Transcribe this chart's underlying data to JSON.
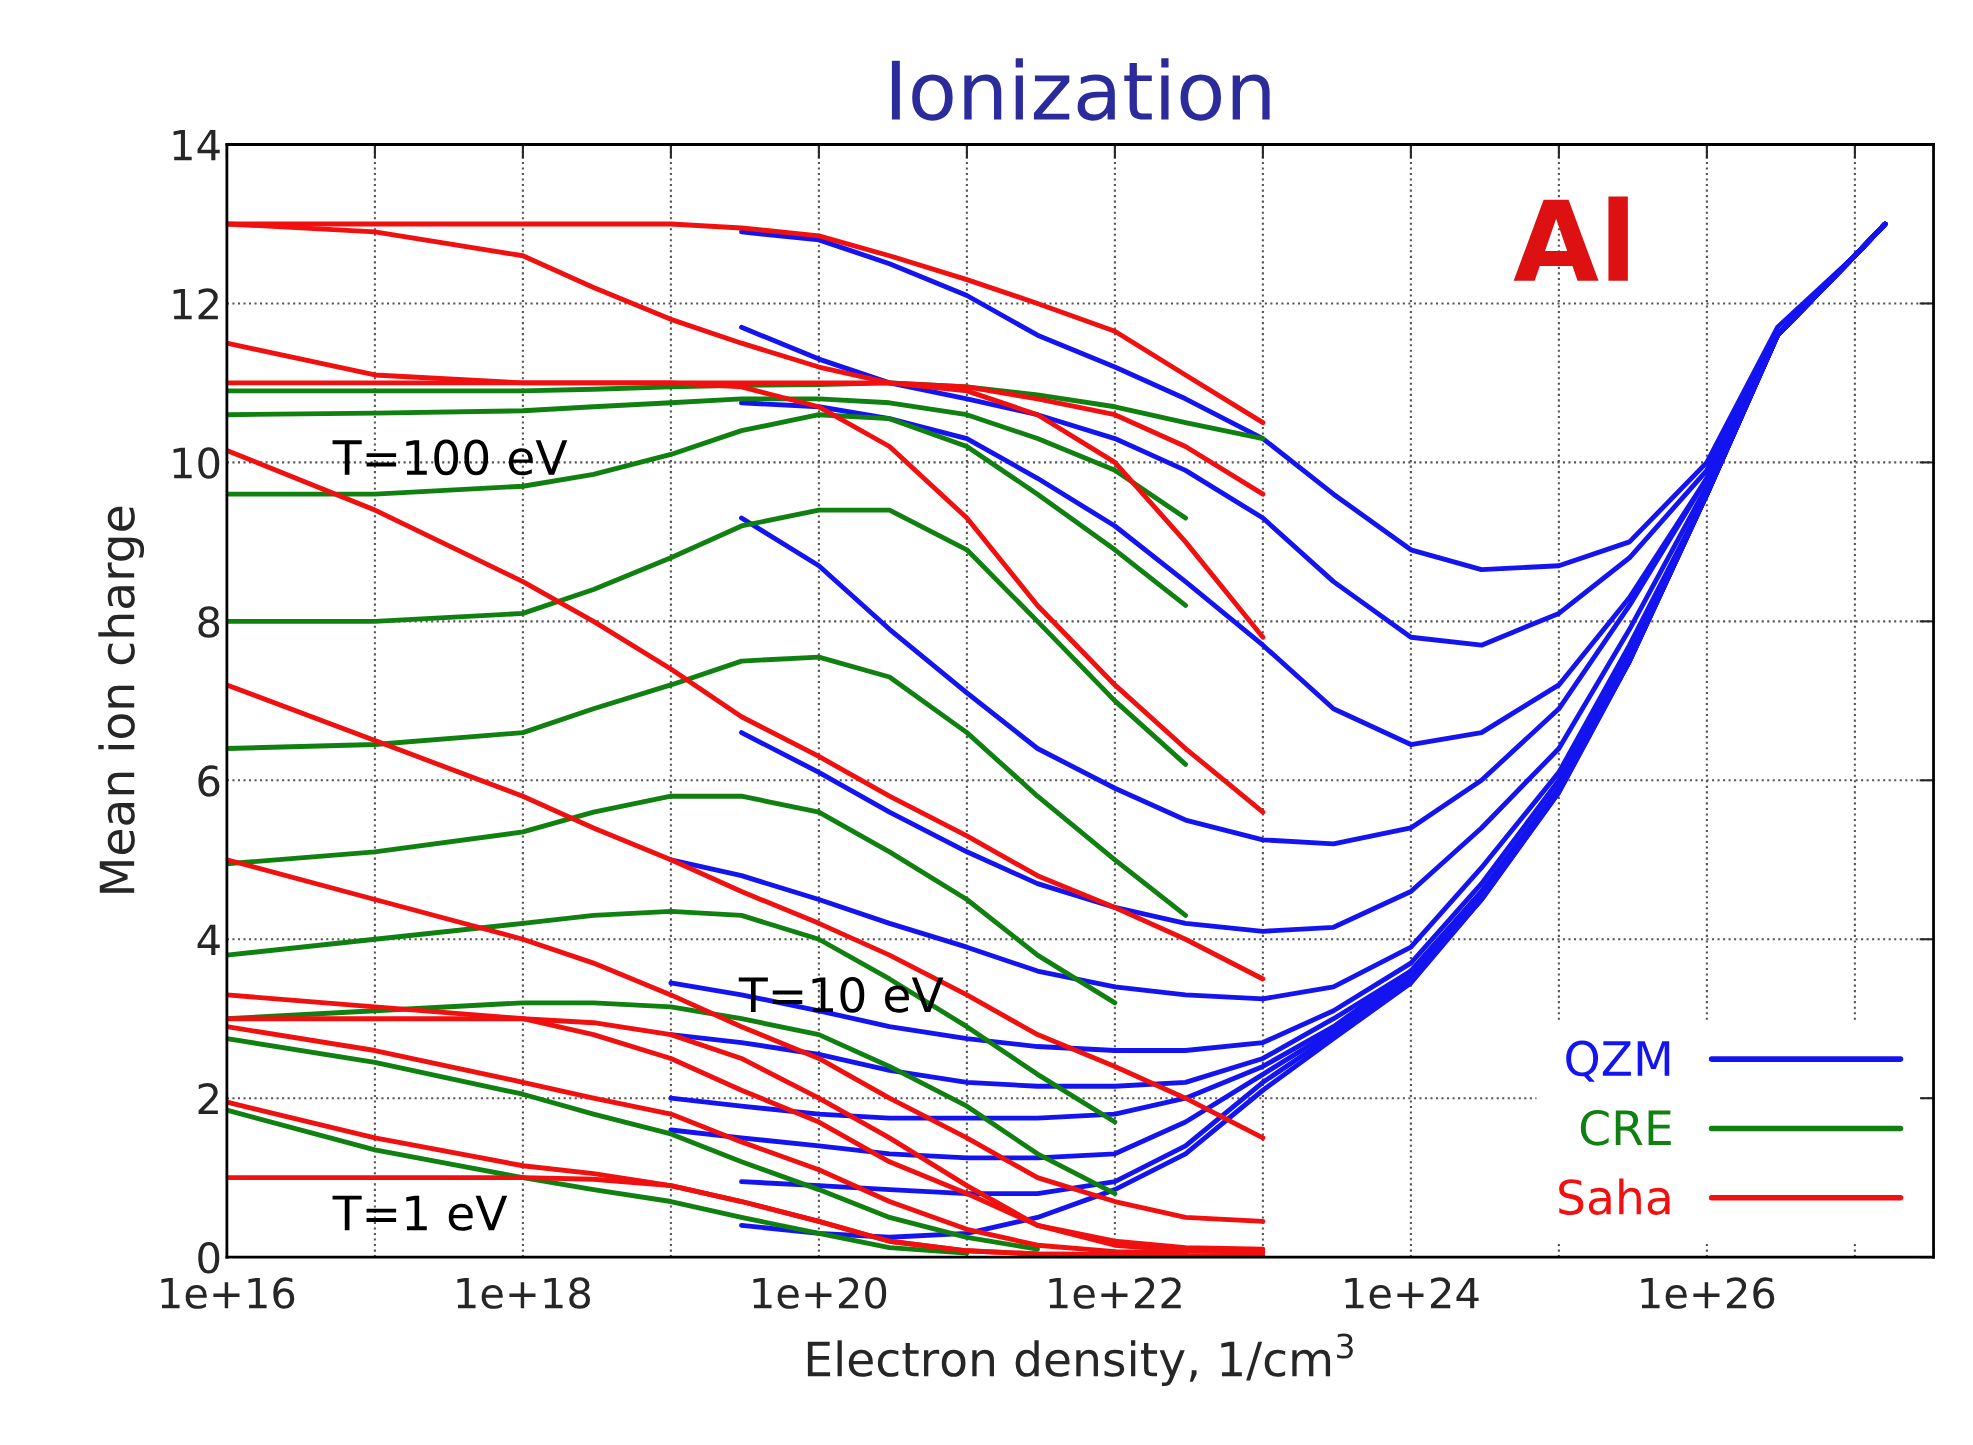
{
  "chart_data": {
    "type": "line",
    "title": "Ionization",
    "xlabel": "Electron density, 1/cm$^{3}$",
    "ylabel": "Mean ion charge",
    "log": "x",
    "grid": true,
    "legend": "bottom right",
    "line_style": "solid",
    "marker": "none",
    "xlim": [
      1e+16,
      3.4e+27
    ],
    "ylim": [
      0,
      14
    ],
    "xticks": [
      {
        "value": 1e+16,
        "label": "1e+16"
      },
      {
        "value": 1e+17,
        "label": null
      },
      {
        "value": 1e+18,
        "label": "1e+18"
      },
      {
        "value": 1e+19,
        "label": null
      },
      {
        "value": 1e+20,
        "label": "1e+20"
      },
      {
        "value": 1e+21,
        "label": null
      },
      {
        "value": 1e+22,
        "label": "1e+22"
      },
      {
        "value": 1e+23,
        "label": null
      },
      {
        "value": 1e+24,
        "label": "1e+24"
      },
      {
        "value": 1e+25,
        "label": null
      },
      {
        "value": 1e+26,
        "label": "1e+26"
      },
      {
        "value": 1e+27,
        "label": null
      }
    ],
    "yticks": [
      0,
      2,
      4,
      6,
      8,
      10,
      12,
      14
    ],
    "annotations": [
      "T=100 eV",
      "T=10 eV",
      "T=1 eV",
      "Al"
    ],
    "series": [
      {
        "name": "QZM",
        "color": "#1414f0",
        "x": [
          3e+19,
          1e+20,
          3e+20,
          1e+21,
          3e+21,
          1e+22,
          3e+22,
          1e+23,
          3e+23,
          1e+24,
          3e+24,
          1e+25,
          3e+25,
          1e+26,
          3e+26,
          1e+27,
          1.6e+27
        ],
        "values": [
          12.9,
          12.8,
          12.5,
          12.1,
          11.6,
          11.2,
          10.8,
          10.3,
          9.6,
          8.9,
          8.65,
          8.7,
          9.0,
          10.0,
          11.7,
          12.6,
          13.0
        ]
      },
      {
        "color": "#1414f0",
        "x": [
          3e+19,
          1e+20,
          3e+20,
          1e+21,
          3e+21,
          1e+22,
          3e+22,
          1e+23,
          3e+23,
          1e+24,
          3e+24,
          1e+25,
          3e+25,
          1e+26,
          3e+26,
          1e+27,
          1.6e+27
        ],
        "values": [
          11.7,
          11.3,
          11.0,
          10.8,
          10.6,
          10.3,
          9.9,
          9.3,
          8.5,
          7.8,
          7.7,
          8.1,
          8.8,
          9.9,
          11.6,
          12.6,
          13.0
        ]
      },
      {
        "color": "#1414f0",
        "x": [
          3e+19,
          1e+20,
          3e+20,
          1e+21,
          3e+21,
          1e+22,
          3e+22,
          1e+23,
          3e+23,
          1e+24,
          3e+24,
          1e+25,
          3e+25,
          1e+26,
          3e+26,
          1e+27,
          1.6e+27
        ],
        "values": [
          10.75,
          10.7,
          10.55,
          10.3,
          9.8,
          9.2,
          8.5,
          7.7,
          6.9,
          6.45,
          6.6,
          7.2,
          8.3,
          9.8,
          11.6,
          12.6,
          13.0
        ]
      },
      {
        "color": "#1414f0",
        "x": [
          3e+19,
          1e+20,
          3e+20,
          1e+21,
          3e+21,
          1e+22,
          3e+22,
          1e+23,
          3e+23,
          1e+24,
          3e+24,
          1e+25,
          3e+25,
          1e+26,
          3e+26,
          1e+27,
          1.6e+27
        ],
        "values": [
          9.3,
          8.7,
          7.9,
          7.1,
          6.4,
          5.9,
          5.5,
          5.25,
          5.2,
          5.4,
          6.0,
          6.9,
          8.2,
          9.8,
          11.6,
          12.6,
          13.0
        ]
      },
      {
        "color": "#1414f0",
        "x": [
          3e+19,
          1e+20,
          3e+20,
          1e+21,
          3e+21,
          1e+22,
          3e+22,
          1e+23,
          3e+23,
          1e+24,
          3e+24,
          1e+25,
          3e+25,
          1e+26,
          3e+26,
          1e+27,
          1.6e+27
        ],
        "values": [
          6.6,
          6.1,
          5.6,
          5.1,
          4.7,
          4.4,
          4.2,
          4.1,
          4.15,
          4.6,
          5.4,
          6.4,
          7.9,
          9.7,
          11.6,
          12.6,
          13.0
        ]
      },
      {
        "color": "#1414f0",
        "x": [
          1e+19,
          3e+19,
          1e+20,
          3e+20,
          1e+21,
          3e+21,
          1e+22,
          3e+22,
          1e+23,
          3e+23,
          1e+24,
          3e+24,
          1e+25,
          3e+25,
          1e+26,
          3e+26,
          1e+27,
          1.6e+27
        ],
        "values": [
          5.0,
          4.8,
          4.5,
          4.2,
          3.9,
          3.6,
          3.4,
          3.3,
          3.25,
          3.4,
          3.9,
          4.9,
          6.1,
          7.7,
          9.6,
          11.6,
          12.6,
          13.0
        ]
      },
      {
        "color": "#1414f0",
        "x": [
          1e+19,
          3e+19,
          1e+20,
          3e+20,
          1e+21,
          3e+21,
          1e+22,
          3e+22,
          1e+23,
          3e+23,
          1e+24,
          3e+24,
          1e+25,
          3e+25,
          1e+26,
          3e+26,
          1e+27,
          1.6e+27
        ],
        "values": [
          3.45,
          3.3,
          3.1,
          2.9,
          2.75,
          2.65,
          2.6,
          2.6,
          2.7,
          3.1,
          3.7,
          4.7,
          6.0,
          7.6,
          9.6,
          11.6,
          12.6,
          13.0
        ]
      },
      {
        "color": "#1414f0",
        "x": [
          1e+19,
          3e+19,
          1e+20,
          3e+20,
          1e+21,
          3e+21,
          1e+22,
          3e+22,
          1e+23,
          3e+23,
          1e+24,
          3e+24,
          1e+25,
          3e+25,
          1e+26,
          3e+26,
          1e+27,
          1.6e+27
        ],
        "values": [
          2.8,
          2.7,
          2.55,
          2.35,
          2.2,
          2.15,
          2.15,
          2.2,
          2.5,
          3.0,
          3.6,
          4.6,
          5.9,
          7.6,
          9.6,
          11.6,
          12.6,
          13.0
        ]
      },
      {
        "color": "#1414f0",
        "x": [
          1e+19,
          3e+19,
          1e+20,
          3e+20,
          1e+21,
          3e+21,
          1e+22,
          3e+22,
          1e+23,
          3e+23,
          1e+24,
          3e+24,
          1e+25,
          3e+25,
          1e+26,
          3e+26,
          1e+27,
          1.6e+27
        ],
        "values": [
          2.0,
          1.9,
          1.8,
          1.75,
          1.75,
          1.75,
          1.8,
          2.0,
          2.4,
          2.9,
          3.6,
          4.6,
          5.9,
          7.5,
          9.6,
          11.6,
          12.6,
          13.0
        ]
      },
      {
        "color": "#1414f0",
        "x": [
          1e+19,
          3e+19,
          1e+20,
          3e+20,
          1e+21,
          3e+21,
          1e+22,
          3e+22,
          1e+23,
          3e+23,
          1e+24,
          3e+24,
          1e+25,
          3e+25,
          1e+26,
          3e+26,
          1e+27,
          1.6e+27
        ],
        "values": [
          1.6,
          1.5,
          1.4,
          1.3,
          1.25,
          1.25,
          1.3,
          1.7,
          2.3,
          2.85,
          3.55,
          4.55,
          5.9,
          7.5,
          9.6,
          11.6,
          12.6,
          13.0
        ]
      },
      {
        "color": "#1414f0",
        "x": [
          3e+19,
          1e+20,
          3e+20,
          1e+21,
          3e+21,
          1e+22,
          3e+22,
          1e+23,
          3e+23,
          1e+24,
          3e+24,
          1e+25,
          3e+25,
          1e+26,
          3e+26,
          1e+27,
          1.6e+27
        ],
        "values": [
          0.95,
          0.9,
          0.85,
          0.8,
          0.8,
          0.95,
          1.4,
          2.2,
          2.8,
          3.5,
          4.5,
          5.85,
          7.5,
          9.6,
          11.6,
          12.6,
          13.0
        ]
      },
      {
        "color": "#1414f0",
        "x": [
          3e+19,
          1e+20,
          3e+20,
          1e+21,
          3e+21,
          1e+22,
          3e+22,
          1e+23,
          3e+23,
          1e+24,
          3e+24,
          1e+25,
          3e+25,
          1e+26,
          3e+26,
          1e+27,
          1.6e+27
        ],
        "values": [
          0.4,
          0.3,
          0.25,
          0.3,
          0.5,
          0.85,
          1.3,
          2.1,
          2.75,
          3.45,
          4.5,
          5.85,
          7.5,
          9.6,
          11.6,
          12.6,
          13.0
        ]
      },
      {
        "name": "CRE",
        "color": "#108010",
        "x": [
          1e+16,
          1e+17,
          1e+18,
          3e+18,
          1e+19,
          3e+19,
          1e+20,
          3e+20,
          1e+21,
          3e+21,
          1e+22,
          3e+22,
          1e+23
        ],
        "values": [
          10.9,
          10.9,
          10.9,
          10.92,
          10.95,
          10.97,
          10.98,
          11.0,
          10.95,
          10.85,
          10.7,
          10.5,
          10.3
        ]
      },
      {
        "color": "#108010",
        "x": [
          1e+16,
          1e+17,
          1e+18,
          3e+18,
          1e+19,
          3e+19,
          1e+20,
          3e+20,
          1e+21,
          3e+21,
          1e+22,
          3e+22
        ],
        "values": [
          10.6,
          10.62,
          10.65,
          10.7,
          10.75,
          10.8,
          10.8,
          10.75,
          10.6,
          10.3,
          9.9,
          9.3
        ]
      },
      {
        "color": "#108010",
        "x": [
          1e+16,
          1e+17,
          1e+18,
          3e+18,
          1e+19,
          3e+19,
          1e+20,
          3e+20,
          1e+21,
          3e+21,
          1e+22,
          3e+22
        ],
        "values": [
          9.6,
          9.6,
          9.7,
          9.85,
          10.1,
          10.4,
          10.6,
          10.55,
          10.2,
          9.6,
          8.9,
          8.2
        ]
      },
      {
        "color": "#108010",
        "x": [
          1e+16,
          1e+17,
          1e+18,
          3e+18,
          1e+19,
          3e+19,
          1e+20,
          3e+20,
          1e+21,
          3e+21,
          1e+22,
          3e+22
        ],
        "values": [
          8.0,
          8.0,
          8.1,
          8.4,
          8.8,
          9.2,
          9.4,
          9.4,
          8.9,
          8.0,
          7.0,
          6.2
        ]
      },
      {
        "color": "#108010",
        "x": [
          1e+16,
          1e+17,
          1e+18,
          3e+18,
          1e+19,
          3e+19,
          1e+20,
          3e+20,
          1e+21,
          3e+21,
          1e+22,
          3e+22
        ],
        "values": [
          6.4,
          6.45,
          6.6,
          6.9,
          7.2,
          7.5,
          7.55,
          7.3,
          6.6,
          5.8,
          5.0,
          4.3
        ]
      },
      {
        "color": "#108010",
        "x": [
          1e+16,
          1e+17,
          1e+18,
          3e+18,
          1e+19,
          3e+19,
          1e+20,
          3e+20,
          1e+21,
          3e+21,
          1e+22
        ],
        "values": [
          4.95,
          5.1,
          5.35,
          5.6,
          5.8,
          5.8,
          5.6,
          5.1,
          4.5,
          3.8,
          3.2
        ]
      },
      {
        "color": "#108010",
        "x": [
          1e+16,
          1e+17,
          1e+18,
          3e+18,
          1e+19,
          3e+19,
          1e+20,
          3e+20,
          1e+21,
          3e+21,
          1e+22
        ],
        "values": [
          3.8,
          4.0,
          4.2,
          4.3,
          4.35,
          4.3,
          4.0,
          3.5,
          2.9,
          2.3,
          1.7
        ]
      },
      {
        "color": "#108010",
        "x": [
          1e+16,
          1e+17,
          1e+18,
          3e+18,
          1e+19,
          3e+19,
          1e+20,
          3e+20,
          1e+21,
          3e+21,
          1e+22
        ],
        "values": [
          3.0,
          3.1,
          3.2,
          3.2,
          3.15,
          3.0,
          2.8,
          2.4,
          1.9,
          1.3,
          0.8
        ]
      },
      {
        "color": "#108010",
        "x": [
          1e+16,
          1e+17,
          1e+18,
          3e+18,
          1e+19,
          3e+19,
          1e+20,
          3e+20,
          1e+21,
          3e+21
        ],
        "values": [
          2.75,
          2.45,
          2.05,
          1.8,
          1.55,
          1.2,
          0.85,
          0.5,
          0.25,
          0.1
        ]
      },
      {
        "color": "#108010",
        "x": [
          1e+16,
          1e+17,
          1e+18,
          3e+18,
          1e+19,
          3e+19,
          1e+20,
          3e+20,
          1e+21
        ],
        "values": [
          1.85,
          1.35,
          1.0,
          0.85,
          0.7,
          0.5,
          0.3,
          0.12,
          0.05
        ]
      },
      {
        "name": "Saha",
        "color": "#f01010",
        "x": [
          1e+16,
          1e+17,
          1e+18,
          3e+18,
          1e+19,
          3e+19,
          1e+20,
          3e+20,
          1e+21,
          3e+21,
          1e+22,
          3e+22,
          1e+23
        ],
        "values": [
          13.0,
          13.0,
          13.0,
          13.0,
          13.0,
          12.95,
          12.85,
          12.6,
          12.3,
          12.0,
          11.65,
          11.1,
          10.5
        ]
      },
      {
        "color": "#f01010",
        "x": [
          1e+16,
          1e+17,
          1e+18,
          3e+18,
          1e+19,
          3e+19,
          1e+20,
          3e+20,
          1e+21,
          3e+21,
          1e+22,
          3e+22,
          1e+23
        ],
        "values": [
          13.0,
          12.9,
          12.6,
          12.2,
          11.8,
          11.5,
          11.2,
          11.0,
          10.95,
          10.8,
          10.6,
          10.2,
          9.6
        ]
      },
      {
        "color": "#f01010",
        "x": [
          1e+16,
          1e+17,
          1e+18,
          3e+18,
          1e+19,
          3e+19,
          1e+20,
          3e+20,
          1e+21,
          3e+21,
          1e+22,
          3e+22,
          1e+23
        ],
        "values": [
          11.5,
          11.1,
          11.0,
          11.0,
          11.0,
          11.0,
          11.0,
          11.0,
          10.9,
          10.6,
          10.0,
          9.0,
          7.8
        ]
      },
      {
        "color": "#f01010",
        "x": [
          1e+16,
          1e+17,
          1e+18,
          3e+18,
          1e+19,
          3e+19,
          1e+20,
          3e+20,
          1e+21,
          3e+21,
          1e+22,
          3e+22,
          1e+23
        ],
        "values": [
          11.0,
          11.0,
          11.0,
          11.0,
          11.0,
          10.95,
          10.7,
          10.2,
          9.3,
          8.2,
          7.2,
          6.4,
          5.6
        ]
      },
      {
        "color": "#f01010",
        "x": [
          1e+16,
          1e+17,
          1e+18,
          3e+18,
          1e+19,
          3e+19,
          1e+20,
          3e+20,
          1e+21,
          3e+21,
          1e+22,
          3e+22,
          1e+23
        ],
        "values": [
          10.15,
          9.4,
          8.5,
          8.0,
          7.4,
          6.8,
          6.3,
          5.8,
          5.3,
          4.8,
          4.4,
          4.0,
          3.5
        ]
      },
      {
        "color": "#f01010",
        "x": [
          1e+16,
          1e+17,
          1e+18,
          3e+18,
          1e+19,
          3e+19,
          1e+20,
          3e+20,
          1e+21,
          3e+21,
          1e+22,
          3e+22,
          1e+23
        ],
        "values": [
          7.2,
          6.5,
          5.8,
          5.4,
          5.0,
          4.6,
          4.2,
          3.8,
          3.3,
          2.8,
          2.4,
          2.0,
          1.5
        ]
      },
      {
        "color": "#f01010",
        "x": [
          1e+16,
          1e+17,
          1e+18,
          3e+18,
          1e+19,
          3e+19,
          1e+20,
          3e+20,
          1e+21,
          3e+21,
          1e+22,
          3e+22,
          1e+23
        ],
        "values": [
          5.0,
          4.5,
          4.0,
          3.7,
          3.3,
          2.9,
          2.5,
          2.0,
          1.5,
          1.0,
          0.7,
          0.5,
          0.45
        ]
      },
      {
        "color": "#f01010",
        "x": [
          1e+16,
          1e+17,
          1e+18,
          3e+18,
          1e+19,
          3e+19,
          1e+20,
          3e+20,
          1e+21,
          3e+21,
          1e+22,
          3e+22,
          1e+23
        ],
        "values": [
          3.3,
          3.15,
          3.0,
          2.8,
          2.5,
          2.1,
          1.7,
          1.2,
          0.8,
          0.4,
          0.2,
          0.12,
          0.1
        ]
      },
      {
        "color": "#f01010",
        "x": [
          1e+16,
          1e+17,
          1e+18,
          3e+18,
          1e+19,
          3e+19,
          1e+20,
          3e+20,
          1e+21,
          3e+21,
          1e+22,
          3e+22,
          1e+23
        ],
        "values": [
          3.0,
          3.0,
          3.0,
          2.95,
          2.8,
          2.5,
          2.0,
          1.5,
          0.9,
          0.4,
          0.15,
          0.08,
          0.06
        ]
      },
      {
        "color": "#f01010",
        "x": [
          1e+16,
          1e+17,
          1e+18,
          3e+18,
          1e+19,
          3e+19,
          1e+20,
          3e+20,
          1e+21,
          3e+21,
          1e+22,
          3e+22
        ],
        "values": [
          2.9,
          2.6,
          2.2,
          2.0,
          1.8,
          1.45,
          1.1,
          0.7,
          0.35,
          0.15,
          0.07,
          0.05
        ]
      },
      {
        "color": "#f01010",
        "x": [
          1e+16,
          1e+17,
          1e+18,
          3e+18,
          1e+19,
          3e+19,
          1e+20,
          3e+20,
          1e+21,
          3e+21,
          1e+22,
          3e+22,
          1e+23
        ],
        "values": [
          1.95,
          1.5,
          1.15,
          1.05,
          0.9,
          0.7,
          0.45,
          0.2,
          0.08,
          0.04,
          0.03,
          0.02,
          0.02
        ]
      },
      {
        "color": "#f01010",
        "x": [
          1e+16,
          1e+17,
          1e+18,
          3e+18,
          1e+19,
          3e+19,
          1e+20,
          3e+20,
          1e+21,
          3e+21,
          1e+22
        ],
        "values": [
          1.0,
          1.0,
          1.0,
          0.98,
          0.9,
          0.7,
          0.45,
          0.2,
          0.08,
          0.04,
          0.03
        ]
      }
    ]
  }
}
